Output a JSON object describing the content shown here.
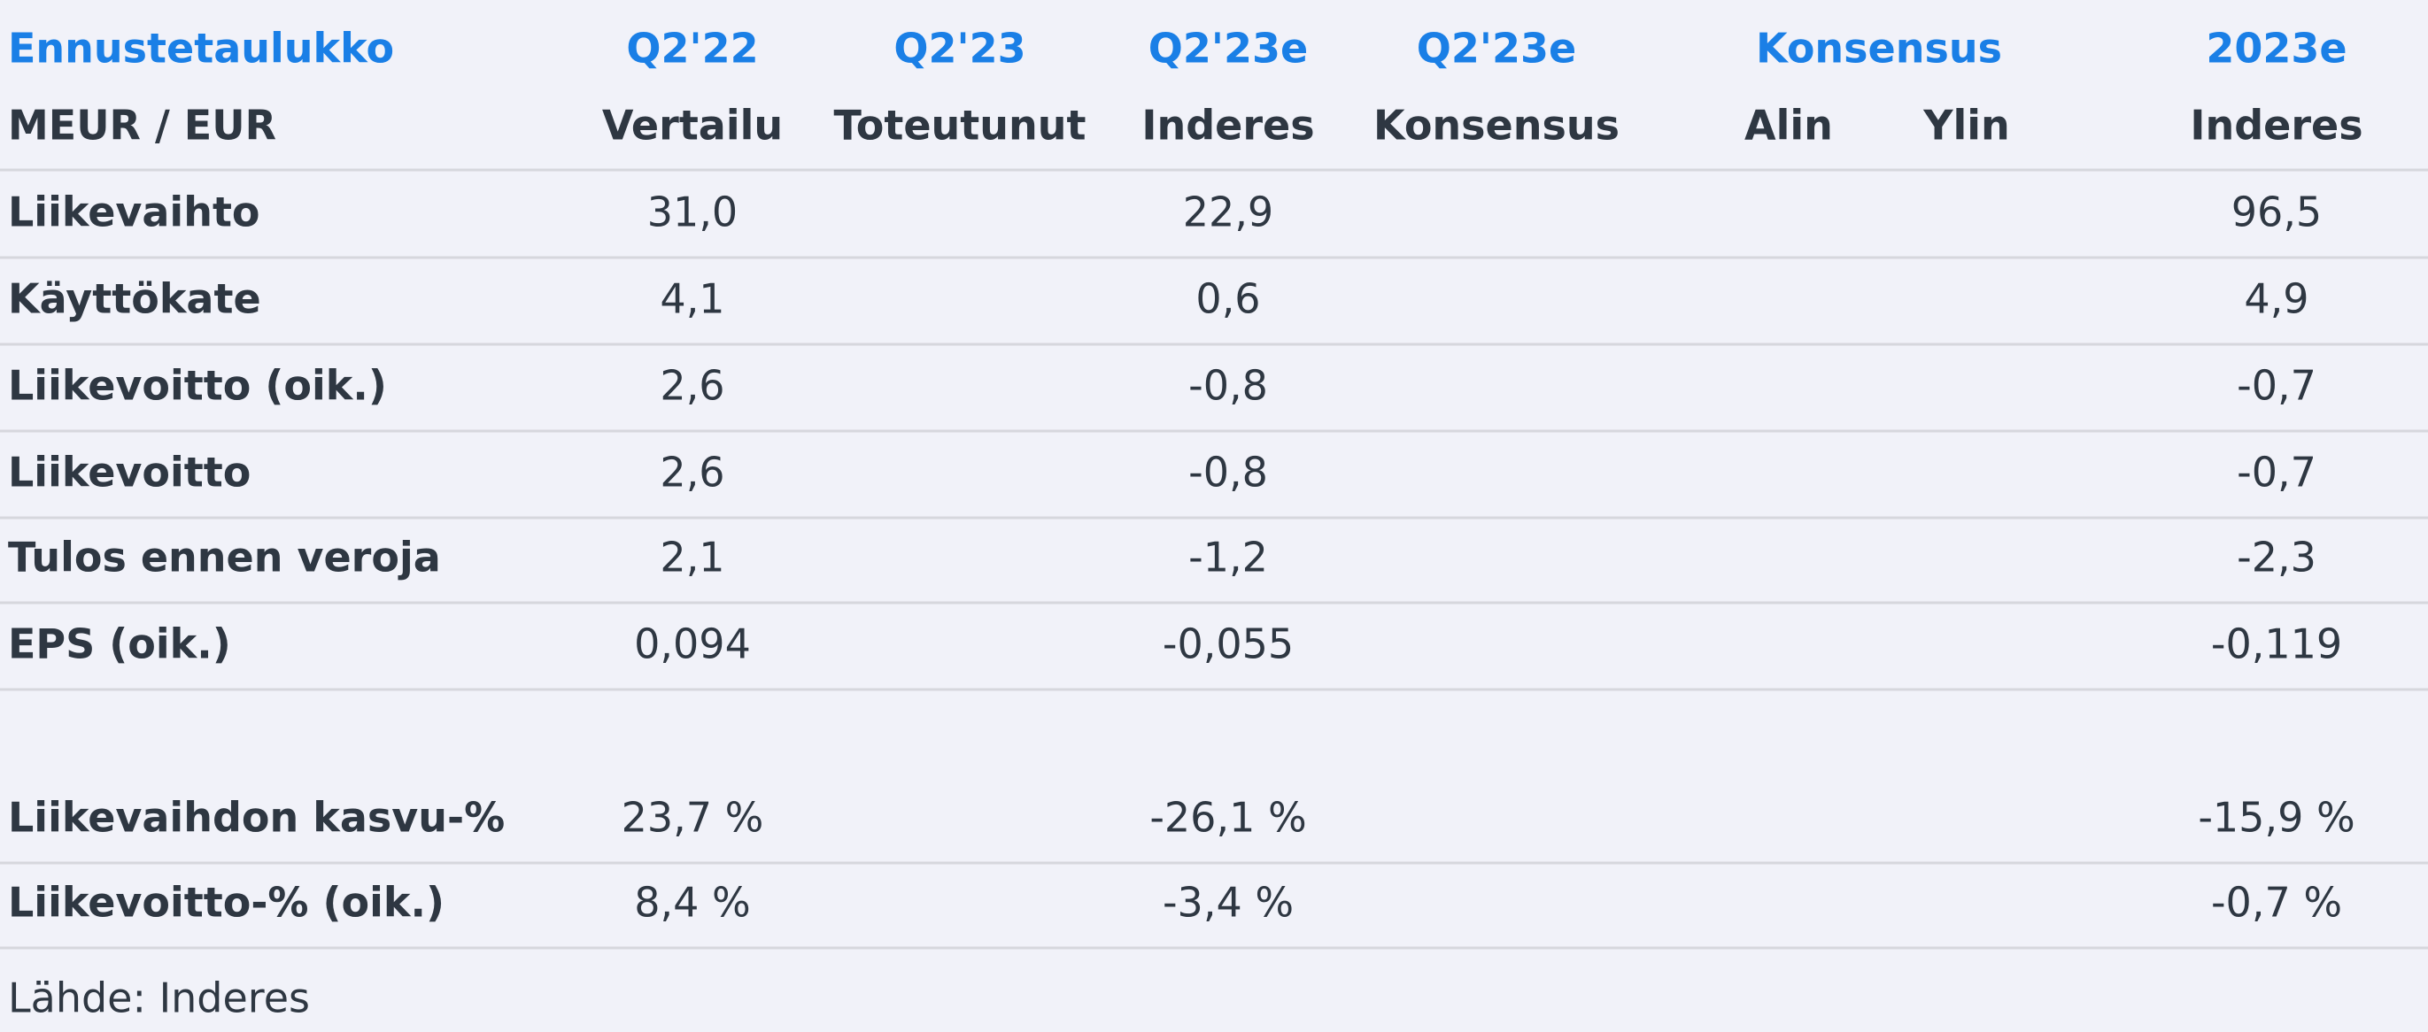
{
  "header": {
    "row1": [
      "Ennustetaulukko",
      "Q2'22",
      "Q2'23",
      "Q2'23e",
      "Q2'23e",
      "Konsensus",
      "2023e"
    ],
    "row2": [
      "MEUR / EUR",
      "Vertailu",
      "Toteutunut",
      "Inderes",
      "Konsensus",
      "Alin",
      "Ylin",
      "Inderes"
    ]
  },
  "table": {
    "rows": [
      {
        "label": "Liikevaihto",
        "vertailu": "31,0",
        "inderes_q2": "22,9",
        "inderes_2023e": "96,5"
      },
      {
        "label": "Käyttökate",
        "vertailu": "4,1",
        "inderes_q2": "0,6",
        "inderes_2023e": "4,9"
      },
      {
        "label": "Liikevoitto (oik.)",
        "vertailu": "2,6",
        "inderes_q2": "-0,8",
        "inderes_2023e": "-0,7"
      },
      {
        "label": "Liikevoitto",
        "vertailu": "2,6",
        "inderes_q2": "-0,8",
        "inderes_2023e": "-0,7"
      },
      {
        "label": "Tulos ennen veroja",
        "vertailu": "2,1",
        "inderes_q2": "-1,2",
        "inderes_2023e": "-2,3"
      },
      {
        "label": "EPS (oik.)",
        "vertailu": "0,094",
        "inderes_q2": "-0,055",
        "inderes_2023e": "-0,119"
      },
      {
        "label": "Liikevaihdon kasvu-%",
        "vertailu": "23,7 %",
        "inderes_q2": "-26,1 %",
        "inderes_2023e": "-15,9 %"
      },
      {
        "label": "Liikevoitto-% (oik.)",
        "vertailu": "8,4 %",
        "inderes_q2": "-3,4 %",
        "inderes_2023e": "-0,7 %"
      }
    ]
  },
  "source": "Lähde: Inderes"
}
